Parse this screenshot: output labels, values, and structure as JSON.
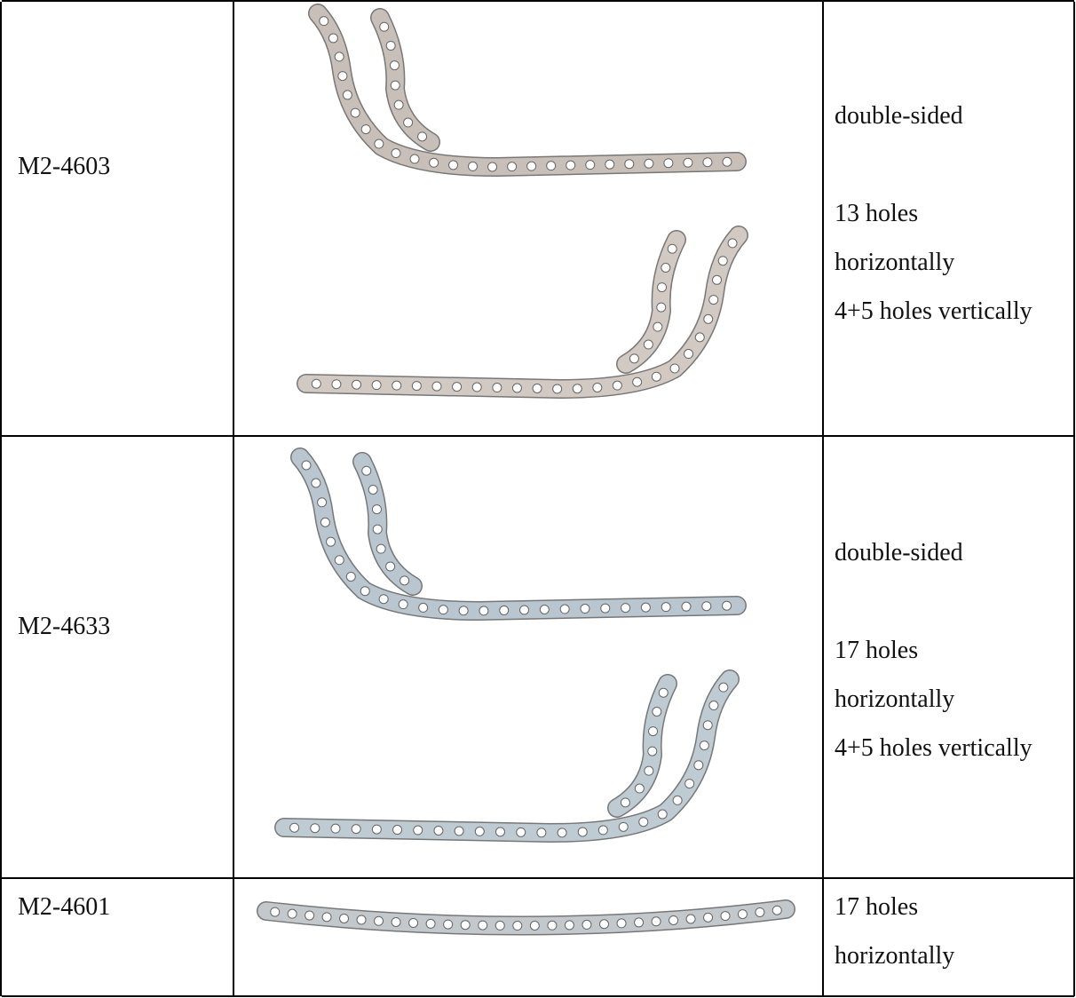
{
  "table": {
    "rows": [
      {
        "code": "M2-4603",
        "note": "double-sided",
        "lines": [
          "13 holes",
          "horizontally",
          "4+5 holes vertically"
        ]
      },
      {
        "code": "M2-4633",
        "note": "double-sided",
        "lines": [
          "17 holes",
          "horizontally",
          "4+5 holes vertically"
        ]
      },
      {
        "code": "M2-4601",
        "lines": [
          "17 holes",
          "horizontally"
        ]
      }
    ]
  }
}
